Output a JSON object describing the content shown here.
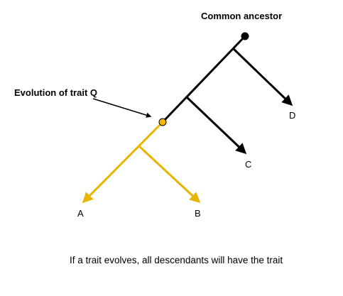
{
  "labels": {
    "common_ancestor": "Common ancestor",
    "evolution_trait": "Evolution of trait Q",
    "caption": "If a trait evolves, all descendants will have the trait"
  },
  "leaves": {
    "a": "A",
    "b": "B",
    "c": "C",
    "d": "D"
  },
  "colors": {
    "ancestral_lineage": "#000000",
    "trait_lineage": "#E8B400",
    "trait_node": "#F5B800",
    "root_node": "#000000",
    "text": "#000000"
  }
}
